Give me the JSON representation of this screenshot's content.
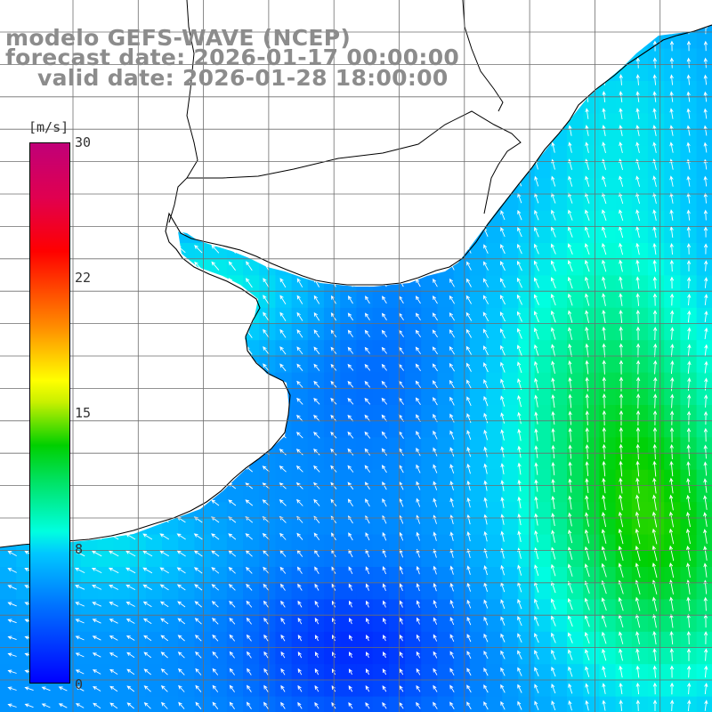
{
  "header": {
    "line1": "modelo GEFS-WAVE (NCEP)",
    "line2": "forecast date: 2026-01-17 00:00:00",
    "line3": "valid date: 2026-01-28 18:00:00"
  },
  "colorbar": {
    "unit": "[m/s]",
    "ticks": [
      "30",
      "22",
      "15",
      "8",
      "0"
    ],
    "range": [
      0,
      30
    ]
  },
  "map": {
    "field": "wind speed and direction",
    "colors": {
      "land": "#ffffff",
      "coast": "#000000",
      "grid": "#6e6e6e",
      "arrows": "#ffffff"
    }
  }
}
